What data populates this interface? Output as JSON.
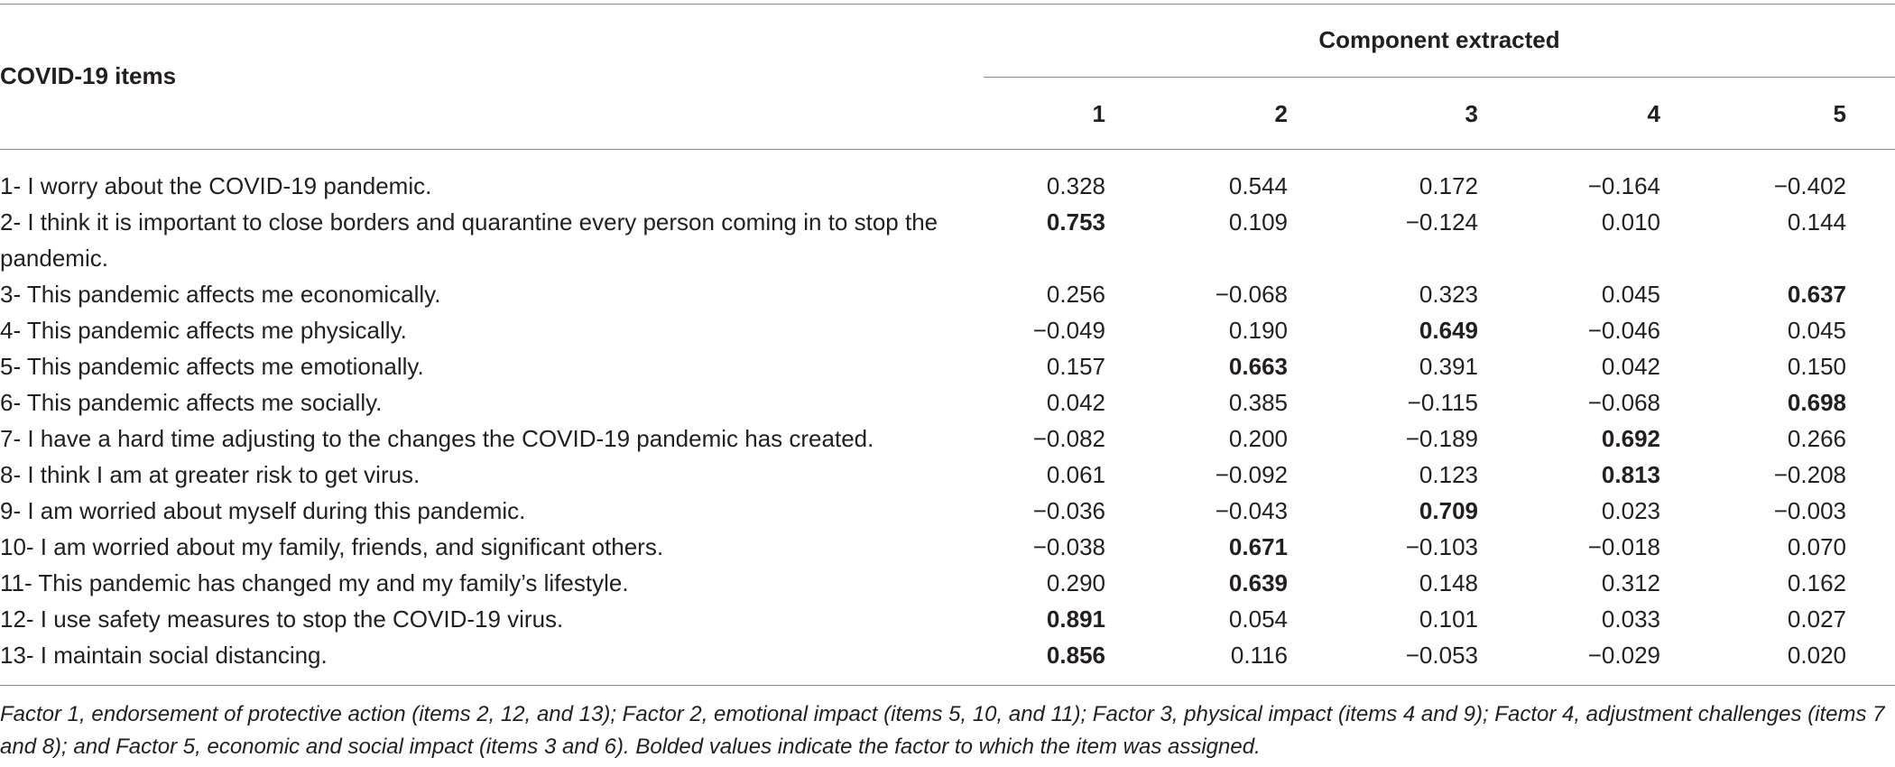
{
  "table": {
    "row_header": "COVID-19 items",
    "group_header": "Component extracted",
    "components": [
      "1",
      "2",
      "3",
      "4",
      "5"
    ],
    "rows": [
      {
        "item": "1- I worry about the COVID-19 pandemic.",
        "values": [
          "0.328",
          "0.544",
          "0.172",
          "−0.164",
          "−0.402"
        ],
        "bold": [
          false,
          false,
          false,
          false,
          false
        ]
      },
      {
        "item": "2- I think it is important to close borders and quarantine every person coming in to stop the pandemic.",
        "values": [
          "0.753",
          "0.109",
          "−0.124",
          "0.010",
          "0.144"
        ],
        "bold": [
          true,
          false,
          false,
          false,
          false
        ]
      },
      {
        "item": "3- This pandemic affects me economically.",
        "values": [
          "0.256",
          "−0.068",
          "0.323",
          "0.045",
          "0.637"
        ],
        "bold": [
          false,
          false,
          false,
          false,
          true
        ]
      },
      {
        "item": "4- This pandemic affects me physically.",
        "values": [
          "−0.049",
          "0.190",
          "0.649",
          "−0.046",
          "0.045"
        ],
        "bold": [
          false,
          false,
          true,
          false,
          false
        ]
      },
      {
        "item": "5- This pandemic affects me emotionally.",
        "values": [
          "0.157",
          "0.663",
          "0.391",
          "0.042",
          "0.150"
        ],
        "bold": [
          false,
          true,
          false,
          false,
          false
        ]
      },
      {
        "item": "6- This pandemic affects me socially.",
        "values": [
          "0.042",
          "0.385",
          "−0.115",
          "−0.068",
          "0.698"
        ],
        "bold": [
          false,
          false,
          false,
          false,
          true
        ]
      },
      {
        "item": "7- I have a hard time adjusting to the changes the COVID-19 pandemic has created.",
        "values": [
          "−0.082",
          "0.200",
          "−0.189",
          "0.692",
          "0.266"
        ],
        "bold": [
          false,
          false,
          false,
          true,
          false
        ]
      },
      {
        "item": "8- I think I am at greater risk to get virus.",
        "values": [
          "0.061",
          "−0.092",
          "0.123",
          "0.813",
          "−0.208"
        ],
        "bold": [
          false,
          false,
          false,
          true,
          false
        ]
      },
      {
        "item": "9- I am worried about myself during this pandemic.",
        "values": [
          "−0.036",
          "−0.043",
          "0.709",
          "0.023",
          "−0.003"
        ],
        "bold": [
          false,
          false,
          true,
          false,
          false
        ]
      },
      {
        "item": "10- I am worried about my family, friends, and significant others.",
        "values": [
          "−0.038",
          "0.671",
          "−0.103",
          "−0.018",
          "0.070"
        ],
        "bold": [
          false,
          true,
          false,
          false,
          false
        ]
      },
      {
        "item": "11- This pandemic has changed my and my family’s lifestyle.",
        "values": [
          "0.290",
          "0.639",
          "0.148",
          "0.312",
          "0.162"
        ],
        "bold": [
          false,
          true,
          false,
          false,
          false
        ]
      },
      {
        "item": "12- I use safety measures to stop the COVID-19 virus.",
        "values": [
          "0.891",
          "0.054",
          "0.101",
          "0.033",
          "0.027"
        ],
        "bold": [
          true,
          false,
          false,
          false,
          false
        ]
      },
      {
        "item": "13- I maintain social distancing.",
        "values": [
          "0.856",
          "0.116",
          "−0.053",
          "−0.029",
          "0.020"
        ],
        "bold": [
          true,
          false,
          false,
          false,
          false
        ]
      }
    ],
    "footnote": "Factor 1, endorsement of protective action (items 2, 12, and 13); Factor 2, emotional impact (items 5, 10, and 11); Factor 3, physical impact (items 4 and 9); Factor 4, adjustment challenges (items 7 and 8); and Factor 5, economic and social impact (items 3 and 6). Bolded values indicate the factor to which the item was assigned."
  }
}
